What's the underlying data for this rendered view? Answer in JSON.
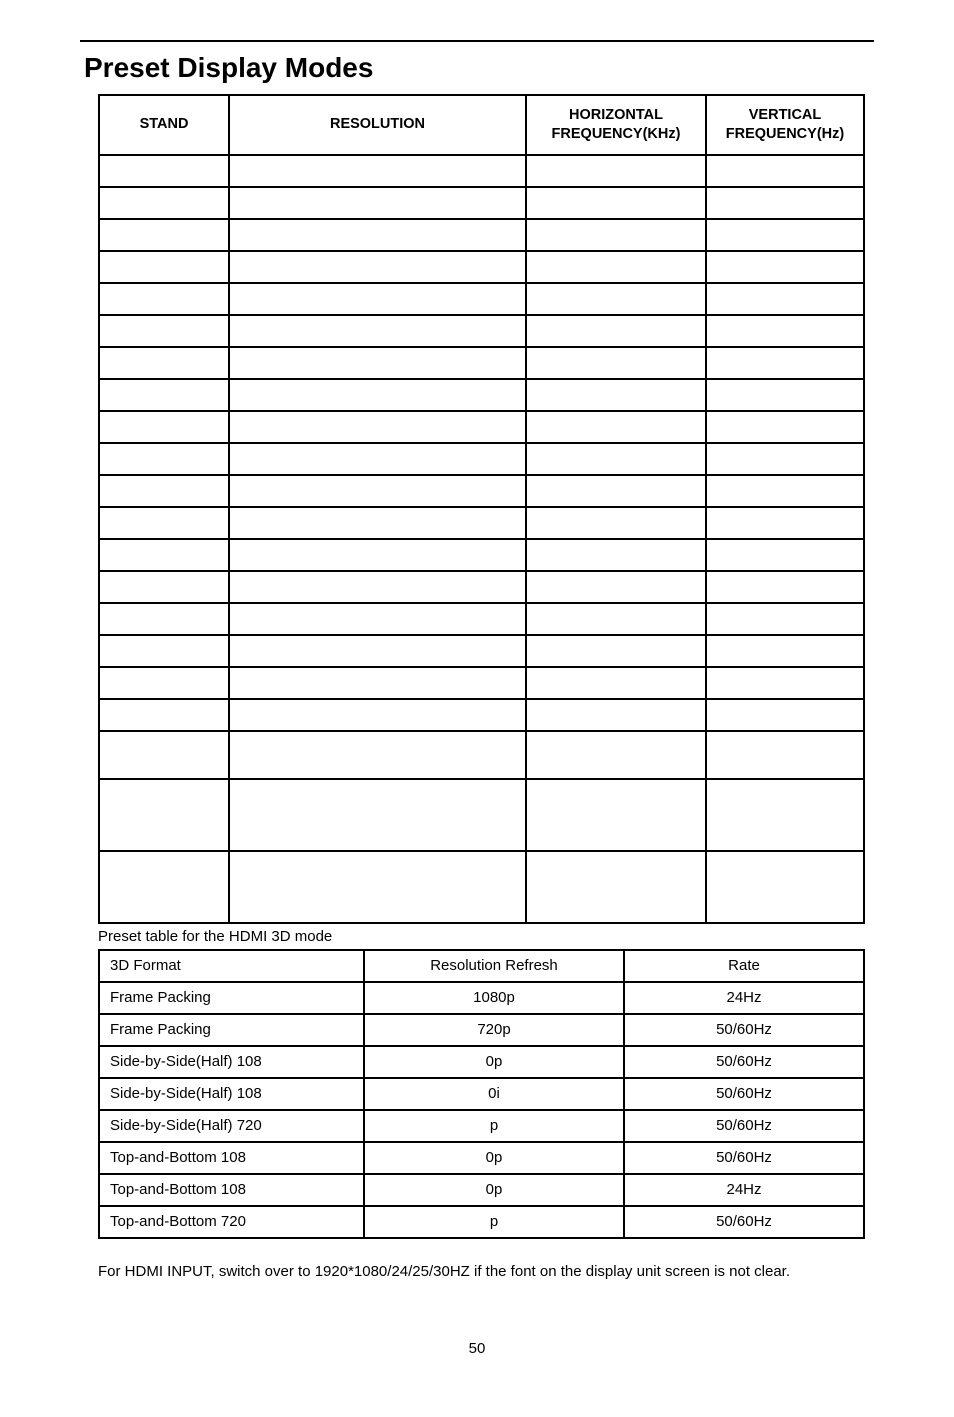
{
  "title": "Preset Display Modes",
  "table1": {
    "headers": [
      "STAND",
      "RESOLUTION",
      "HORIZONTAL FREQUENCY(KHz)",
      "VERTICAL FREQUENCY(Hz)"
    ]
  },
  "caption": "Preset table for the HDMI 3D mode",
  "table2": {
    "rows": [
      [
        "3D Format",
        "Resolution Refresh",
        "Rate"
      ],
      [
        "Frame Packing",
        "1080p",
        "24Hz"
      ],
      [
        "Frame Packing",
        "720p",
        "50/60Hz"
      ],
      [
        "Side-by-Side(Half) 108",
        "0p",
        "50/60Hz"
      ],
      [
        "Side-by-Side(Half) 108",
        "0i",
        "50/60Hz"
      ],
      [
        "Side-by-Side(Half) 720",
        "p",
        "50/60Hz"
      ],
      [
        "Top-and-Bottom 108",
        "0p",
        "50/60Hz"
      ],
      [
        "Top-and-Bottom 108",
        "0p",
        "24Hz"
      ],
      [
        "Top-and-Bottom 720",
        "p",
        "50/60Hz"
      ]
    ]
  },
  "note": "For HDMI INPUT, switch over to 1920*1080/24/25/30HZ if the font on the display unit screen is not clear.",
  "pagenum": "50"
}
